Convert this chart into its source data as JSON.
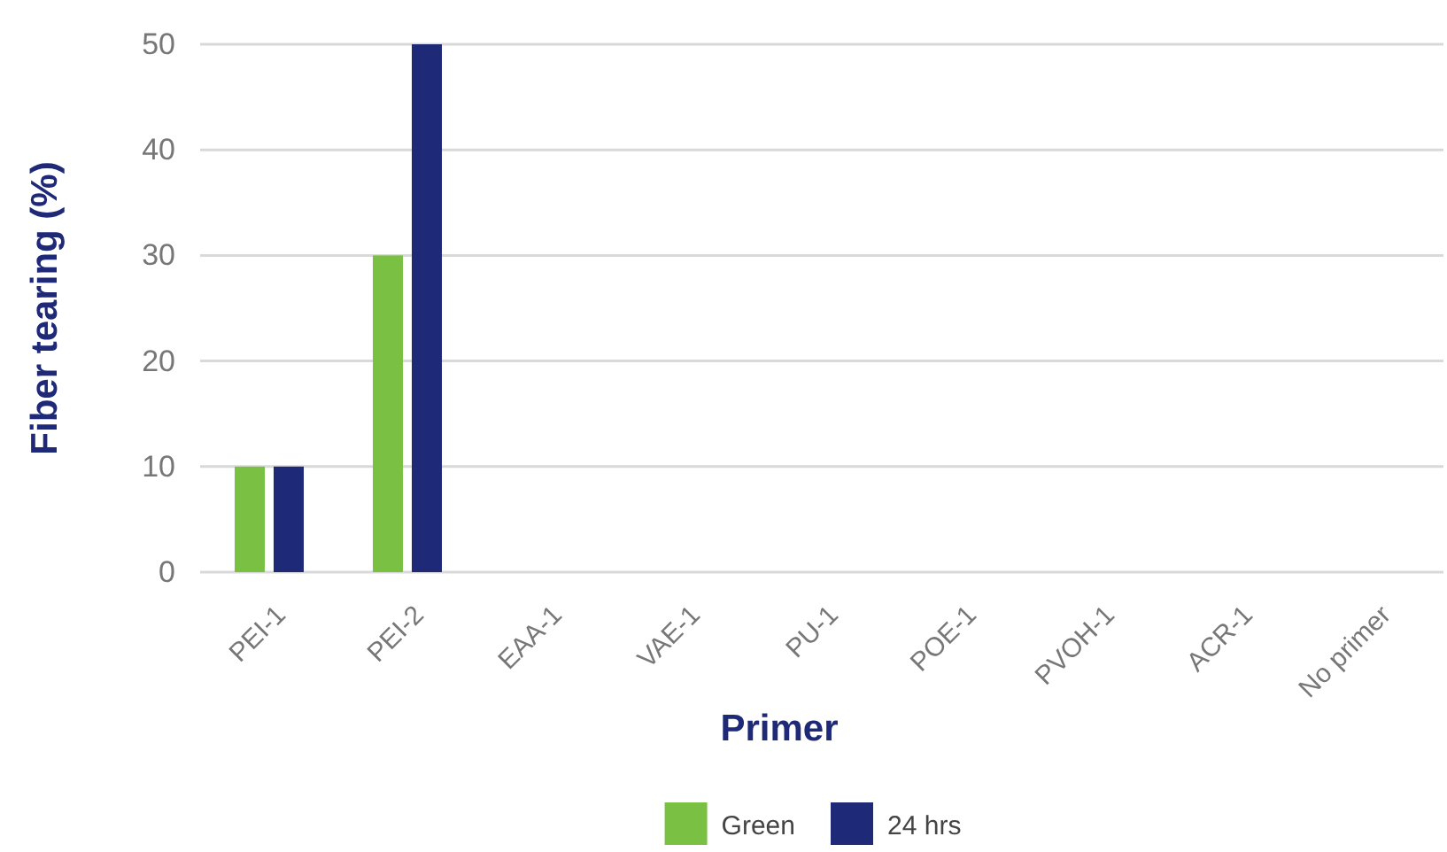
{
  "chart_data": {
    "type": "bar",
    "xlabel": "Primer",
    "ylabel": "Fiber tearing (%)",
    "categories": [
      "PEI-1",
      "PEI-2",
      "EAA-1",
      "VAE-1",
      "PU-1",
      "POE-1",
      "PVOH-1",
      "ACR-1",
      "No primer"
    ],
    "series": [
      {
        "name": "Green",
        "color": "#7ac143",
        "values": [
          10,
          30,
          0,
          0,
          0,
          0,
          0,
          0,
          0
        ]
      },
      {
        "name": "24 hrs",
        "color": "#1e2a78",
        "values": [
          10,
          50,
          0,
          0,
          0,
          0,
          0,
          0,
          0
        ]
      }
    ],
    "ylim": [
      0,
      50
    ],
    "yticks": [
      0,
      10,
      20,
      30,
      40,
      50
    ],
    "grid": "y",
    "legend": "bottom"
  }
}
